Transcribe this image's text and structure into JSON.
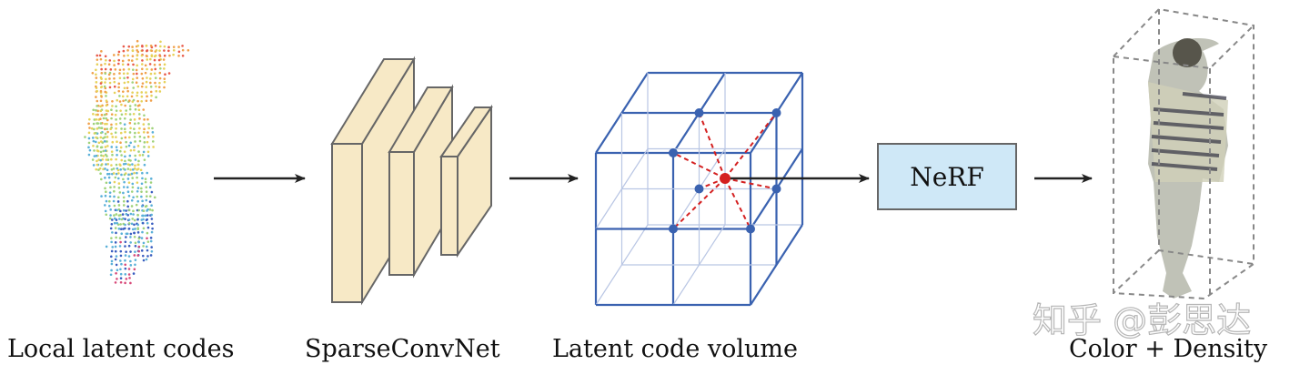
{
  "labels": {
    "point_cloud": "Local latent codes",
    "network": "SparseConvNet",
    "volume": "Latent code volume",
    "output": "Color + Density"
  },
  "nerf_box": {
    "label": "NeRF",
    "fill": "#cfe8f7"
  },
  "watermark": "知乎 @彭思达",
  "colors": {
    "grid": "#3a62b0",
    "grid_faint": "#b9c6e4",
    "sample_point": "#d42020",
    "interp_lines": "#d42020",
    "conv_block": "#f7e9c6",
    "arrow": "#222222"
  }
}
